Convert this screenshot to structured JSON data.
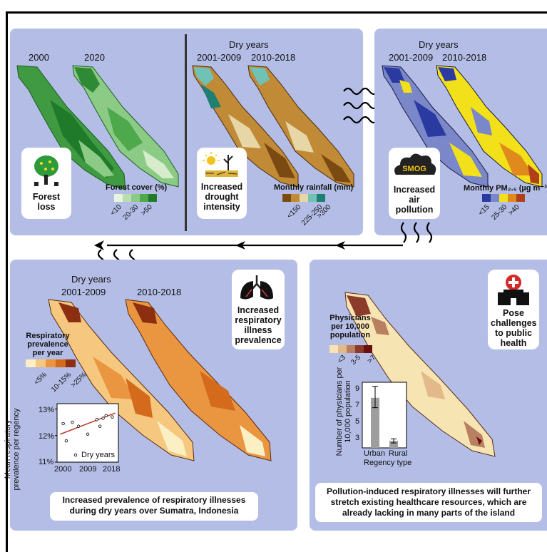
{
  "forest": {
    "year_a": "2000",
    "year_b": "2020",
    "card": "Forest loss",
    "legend_title": "Forest cover (%)",
    "ticks": [
      "<10",
      "20-30",
      ">50"
    ],
    "colors": [
      "#e8f4e0",
      "#b9dfb0",
      "#8ccb85",
      "#4ea84c",
      "#1f7a2a"
    ]
  },
  "rain": {
    "header": "Dry years",
    "period_a": "2001-2009",
    "period_b": "2010-2018",
    "card": "Increased drought intensity",
    "legend_title": "Monthly rainfall (mm)",
    "ticks": [
      "<150",
      "225-250",
      ">300"
    ],
    "colors": [
      "#7a4a12",
      "#c08a36",
      "#e8d7a6",
      "#6fc2b4",
      "#1e7f73"
    ]
  },
  "pm": {
    "header": "Dry years",
    "period_a": "2001-2009",
    "period_b": "2010-2018",
    "card": "Increased air pollution",
    "smog": "SMOG",
    "legend_title": "Monthly PM₂.₅ (µg m⁻³)",
    "ticks": [
      "<15",
      "25-30",
      ">40"
    ],
    "colors": [
      "#2a3aa0",
      "#7a87c8",
      "#f2e01a",
      "#e08a1e",
      "#b0401a"
    ]
  },
  "resp": {
    "header": "Dry years",
    "period_a": "2001-2009",
    "period_b": "2010-2018",
    "card": "Increased respiratory illness prevalence",
    "legend_title": "Respiratory prevalence per year",
    "ticks": [
      "<5%",
      "10-15%",
      ">25%"
    ],
    "colors": [
      "#fbefc4",
      "#f6c77e",
      "#ea9540",
      "#d46a1c",
      "#8c2f10"
    ],
    "caption": "Increased prevalence of respiratory illnesses during dry years over Sumatra, Indonesia"
  },
  "health": {
    "card": "Pose challenges to public health",
    "legend_title": "Physicians per 10,000 population",
    "ticks": [
      "<3",
      "3-5",
      ">7"
    ],
    "colors": [
      "#f7e4b3",
      "#e3b98a",
      "#b88060",
      "#8c3a2a",
      "#6a0f10"
    ],
    "caption": "Pollution-induced respiratory illnesses will further stretch existing healthcare resources, which are already lacking in many parts of the island"
  },
  "chart_data": [
    {
      "type": "scatter",
      "ylabel": "Mean respiratory prevalence per regency",
      "xlabel": "",
      "legend": "Dry years",
      "x_ticks": [
        "2000",
        "2009",
        "2018"
      ],
      "y_ticks": [
        "11%",
        "12%",
        "13%"
      ],
      "ylim": [
        11,
        13.2
      ],
      "xlim": [
        1999,
        2019
      ],
      "points": [
        {
          "x": 2001,
          "y": 12.45
        },
        {
          "x": 2002,
          "y": 11.8
        },
        {
          "x": 2004,
          "y": 12.5
        },
        {
          "x": 2006,
          "y": 12.35
        },
        {
          "x": 2009,
          "y": 12.05
        },
        {
          "x": 2012,
          "y": 12.6
        },
        {
          "x": 2013,
          "y": 12.35
        },
        {
          "x": 2014,
          "y": 12.65
        },
        {
          "x": 2015,
          "y": 12.75
        },
        {
          "x": 2017,
          "y": 12.7
        }
      ],
      "trend": [
        {
          "x": 2000,
          "y": 12.05
        },
        {
          "x": 2018,
          "y": 12.85
        }
      ]
    },
    {
      "type": "bar",
      "ylabel": "Number of physicians per 10,000 population",
      "xlabel": "Regency type",
      "categories": [
        "Urban",
        "Rural"
      ],
      "values": [
        8.1,
        2.85
      ],
      "errors": [
        [
          6.9,
          9.5
        ],
        [
          2.6,
          3.1
        ]
      ],
      "y_ticks": [
        "3",
        "5",
        "7",
        "9"
      ],
      "ylim": [
        2,
        10
      ]
    }
  ]
}
